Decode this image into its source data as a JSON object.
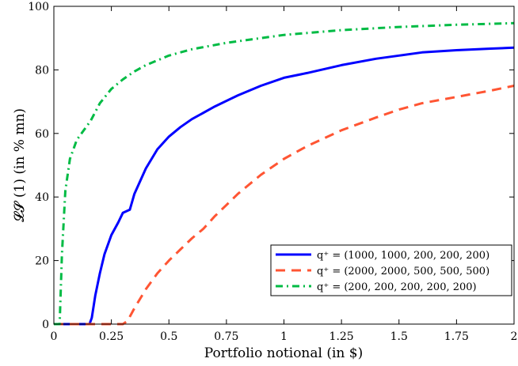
{
  "chart_data": {
    "type": "line",
    "xlabel": "Portfolio notional (in $)",
    "ylabel": "𝓛𝓢 (1) (in % mn)",
    "xlim": [
      0,
      2
    ],
    "ylim": [
      0,
      100
    ],
    "xticks": [
      0,
      0.25,
      0.5,
      0.75,
      1,
      1.25,
      1.5,
      1.75,
      2
    ],
    "xtick_labels": [
      "0",
      "0.25",
      "0.5",
      "0.75",
      "1",
      "1.25",
      "1.5",
      "1.75",
      "2"
    ],
    "yticks": [
      0,
      20,
      40,
      60,
      80,
      100
    ],
    "ytick_labels": [
      "0",
      "20",
      "40",
      "60",
      "80",
      "100"
    ],
    "grid": false,
    "legend_position": "bottom-right",
    "series": [
      {
        "name": "q⁺ = (1000, 1000, 200, 200, 200)",
        "color": "#0000ff",
        "dash": "solid",
        "x": [
          0,
          0.155,
          0.165,
          0.18,
          0.2,
          0.22,
          0.25,
          0.28,
          0.3,
          0.33,
          0.35,
          0.4,
          0.45,
          0.5,
          0.55,
          0.6,
          0.7,
          0.8,
          0.9,
          1.0,
          1.1,
          1.25,
          1.4,
          1.5,
          1.6,
          1.75,
          1.9,
          2.0
        ],
        "y": [
          0,
          0,
          2,
          9,
          16,
          22,
          28,
          32,
          35,
          36,
          41,
          49,
          55,
          59,
          62,
          64.5,
          68.5,
          72,
          75,
          77.5,
          79,
          81.5,
          83.5,
          84.5,
          85.5,
          86.2,
          86.7,
          87
        ]
      },
      {
        "name": "q⁺ = (2000, 2000, 500, 500, 500)",
        "color": "#ff5533",
        "dash": "dashed",
        "x": [
          0,
          0.3,
          0.32,
          0.35,
          0.4,
          0.45,
          0.5,
          0.55,
          0.6,
          0.65,
          0.7,
          0.75,
          0.8,
          0.9,
          1.0,
          1.1,
          1.25,
          1.4,
          1.5,
          1.6,
          1.75,
          1.9,
          2.0
        ],
        "y": [
          0,
          0,
          1,
          5,
          11,
          16,
          20,
          23.5,
          27,
          30,
          34,
          37.5,
          41,
          47,
          52,
          56,
          61,
          65,
          67.5,
          69.5,
          71.5,
          73.5,
          75
        ]
      },
      {
        "name": "q⁺ = (200, 200, 200, 200, 200)",
        "color": "#00bb44",
        "dash": "dashdot",
        "x": [
          0,
          0.025,
          0.035,
          0.05,
          0.07,
          0.1,
          0.13,
          0.16,
          0.2,
          0.25,
          0.3,
          0.35,
          0.4,
          0.5,
          0.6,
          0.75,
          0.9,
          1.0,
          1.25,
          1.5,
          1.75,
          2.0
        ],
        "y": [
          0,
          0,
          22,
          42,
          52,
          58,
          61,
          64,
          69.5,
          74,
          77,
          79.5,
          81.5,
          84.5,
          86.5,
          88.5,
          90,
          91,
          92.5,
          93.5,
          94.2,
          94.7
        ]
      }
    ]
  }
}
